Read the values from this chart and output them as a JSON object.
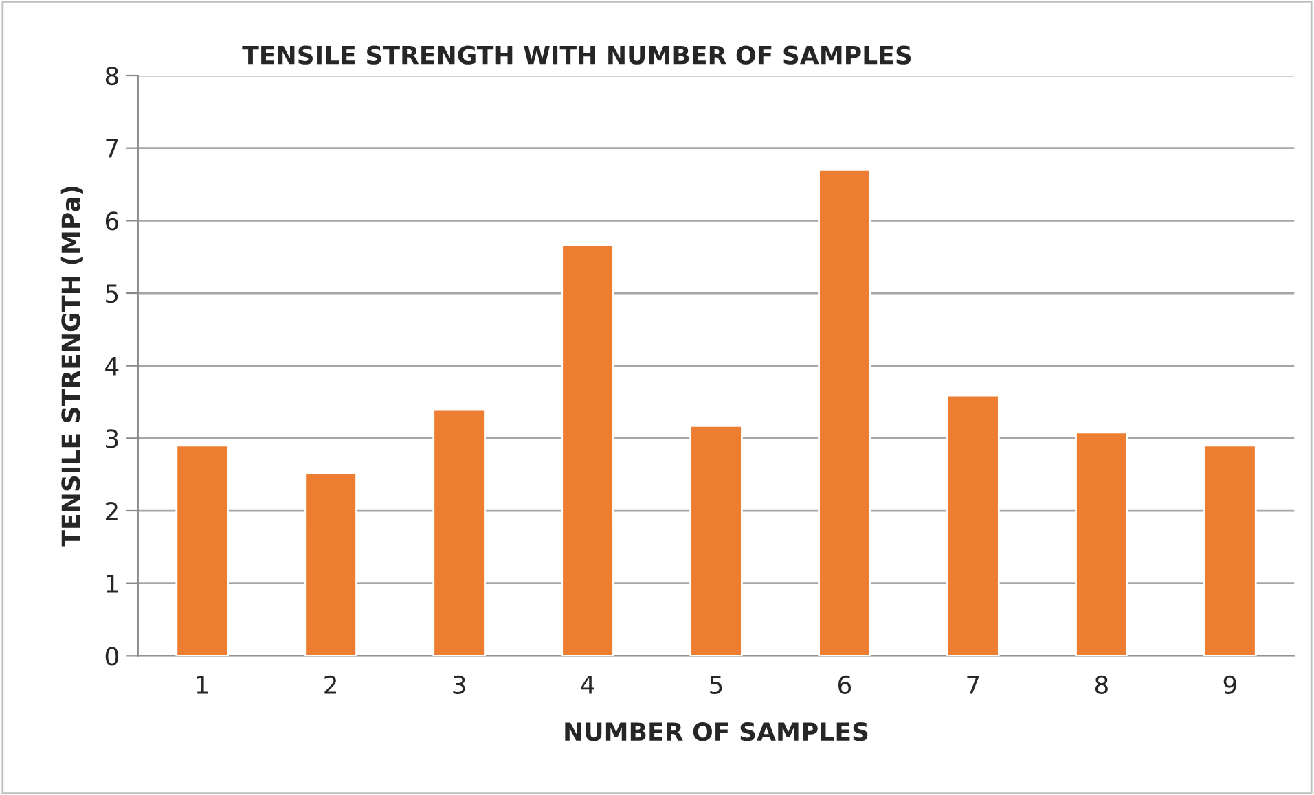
{
  "chart_data": {
    "type": "bar",
    "title": "TENSILE STRENGTH WITH NUMBER OF SAMPLES",
    "xlabel": "NUMBER OF SAMPLES",
    "ylabel": "TENSILE STRENGTH (MPa)",
    "categories": [
      "1",
      "2",
      "3",
      "4",
      "5",
      "6",
      "7",
      "8",
      "9"
    ],
    "values": [
      2.9,
      2.52,
      3.4,
      5.66,
      3.17,
      6.7,
      3.59,
      3.08,
      2.9
    ],
    "color": "#ed7d31",
    "ylim": [
      0,
      8
    ],
    "yticks": [
      0,
      1,
      2,
      3,
      4,
      5,
      6,
      7,
      8
    ],
    "grid": "y"
  }
}
